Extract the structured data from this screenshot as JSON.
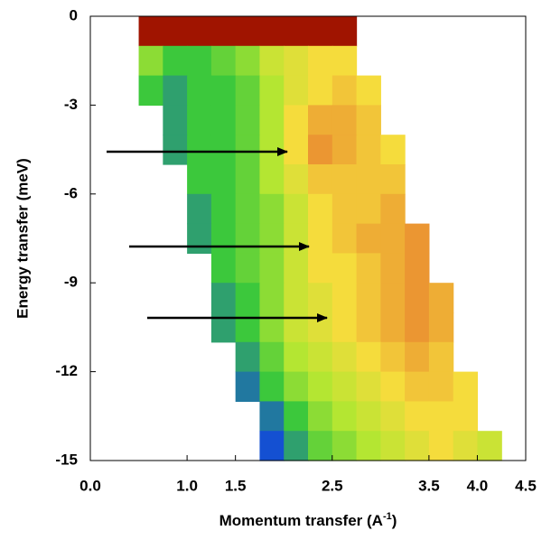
{
  "chart_data": {
    "type": "heatmap",
    "xlabel": {
      "text": "Momentum transfer (A",
      "superscript": "-1",
      "suffix": ")"
    },
    "ylabel": "Energy transfer (meV)",
    "x": [
      0.125,
      0.375,
      0.625,
      0.875,
      1.125,
      1.375,
      1.625,
      1.875,
      2.125,
      2.375,
      2.625,
      2.875,
      3.125,
      3.375,
      3.625,
      3.875,
      4.125,
      4.375
    ],
    "y": [
      -0.5,
      -1.5,
      -2.5,
      -3.5,
      -4.5,
      -5.5,
      -6.5,
      -7.5,
      -8.5,
      -9.5,
      -10.5,
      -11.5,
      -12.5,
      -13.5,
      -14.5
    ],
    "z": [
      [
        null,
        null,
        10,
        10,
        10,
        10,
        10,
        10,
        10,
        10,
        10,
        null,
        null,
        null,
        null,
        null,
        null,
        null
      ],
      [
        null,
        null,
        4,
        3,
        3,
        3.5,
        4,
        5,
        5.5,
        6,
        6,
        null,
        null,
        null,
        null,
        null,
        null,
        null
      ],
      [
        null,
        null,
        3,
        2.5,
        3,
        3,
        3.5,
        4.5,
        5.5,
        6,
        6.5,
        6,
        null,
        null,
        null,
        null,
        null,
        null
      ],
      [
        null,
        null,
        null,
        2.5,
        3,
        3,
        3.5,
        4.5,
        6,
        7,
        7,
        6.5,
        null,
        null,
        null,
        null,
        null,
        null
      ],
      [
        null,
        null,
        null,
        2.5,
        3,
        3,
        3.5,
        4.5,
        6,
        7.5,
        7,
        6.5,
        6,
        null,
        null,
        null,
        null,
        null
      ],
      [
        null,
        null,
        null,
        null,
        3,
        3,
        3.5,
        4.5,
        5.5,
        6.5,
        6.5,
        6.5,
        6.5,
        null,
        null,
        null,
        null,
        null
      ],
      [
        null,
        null,
        null,
        null,
        2.5,
        3,
        3.5,
        4,
        5,
        6,
        6.5,
        6.5,
        7,
        null,
        null,
        null,
        null,
        null
      ],
      [
        null,
        null,
        null,
        null,
        2.5,
        3,
        3.5,
        4,
        5,
        6,
        6.5,
        7,
        7,
        7.5,
        null,
        null,
        null,
        null
      ],
      [
        null,
        null,
        null,
        null,
        null,
        3,
        3.5,
        4,
        5,
        6,
        6,
        6.5,
        7,
        7.5,
        null,
        null,
        null,
        null
      ],
      [
        null,
        null,
        null,
        null,
        null,
        2.5,
        3,
        4,
        5,
        5.5,
        6,
        6.5,
        7,
        7.5,
        7,
        null,
        null,
        null
      ],
      [
        null,
        null,
        null,
        null,
        null,
        2.5,
        3,
        4,
        5,
        5.5,
        6,
        6.5,
        7,
        7.5,
        7,
        null,
        null,
        null
      ],
      [
        null,
        null,
        null,
        null,
        null,
        null,
        2.5,
        3.5,
        4.5,
        5,
        5.5,
        6,
        6.5,
        7,
        6.5,
        null,
        null,
        null
      ],
      [
        null,
        null,
        null,
        null,
        null,
        null,
        2,
        3,
        4,
        4.5,
        5,
        5.5,
        6,
        6.5,
        6.5,
        6,
        null,
        null
      ],
      [
        null,
        null,
        null,
        null,
        null,
        null,
        null,
        2,
        3,
        4,
        4.5,
        5,
        5.5,
        6,
        6,
        6,
        null,
        null
      ],
      [
        null,
        null,
        null,
        null,
        null,
        null,
        null,
        1.5,
        2.5,
        3.5,
        4,
        4.5,
        5,
        5.5,
        6,
        5.5,
        5,
        null
      ]
    ],
    "zlim": [
      0,
      10
    ],
    "colorscale": [
      [
        0,
        "#0a1eb4"
      ],
      [
        1.5,
        "#1450d2"
      ],
      [
        3,
        "#3cc83c"
      ],
      [
        4.5,
        "#b4e632"
      ],
      [
        6,
        "#f5dc3c"
      ],
      [
        7.5,
        "#eb9632"
      ],
      [
        10,
        "#a01400"
      ]
    ],
    "xlim": [
      0,
      4.5
    ],
    "xticks": [
      {
        "value": 0,
        "label": "0.0"
      },
      {
        "value": 1,
        "label": "1.0"
      },
      1.5,
      2.5,
      3.5,
      {
        "value": 4,
        "label": "4.0"
      },
      4.5
    ],
    "ylim": [
      -15,
      0
    ],
    "yticks": [
      0,
      -3,
      -6,
      -9,
      -12,
      -15
    ]
  }
}
